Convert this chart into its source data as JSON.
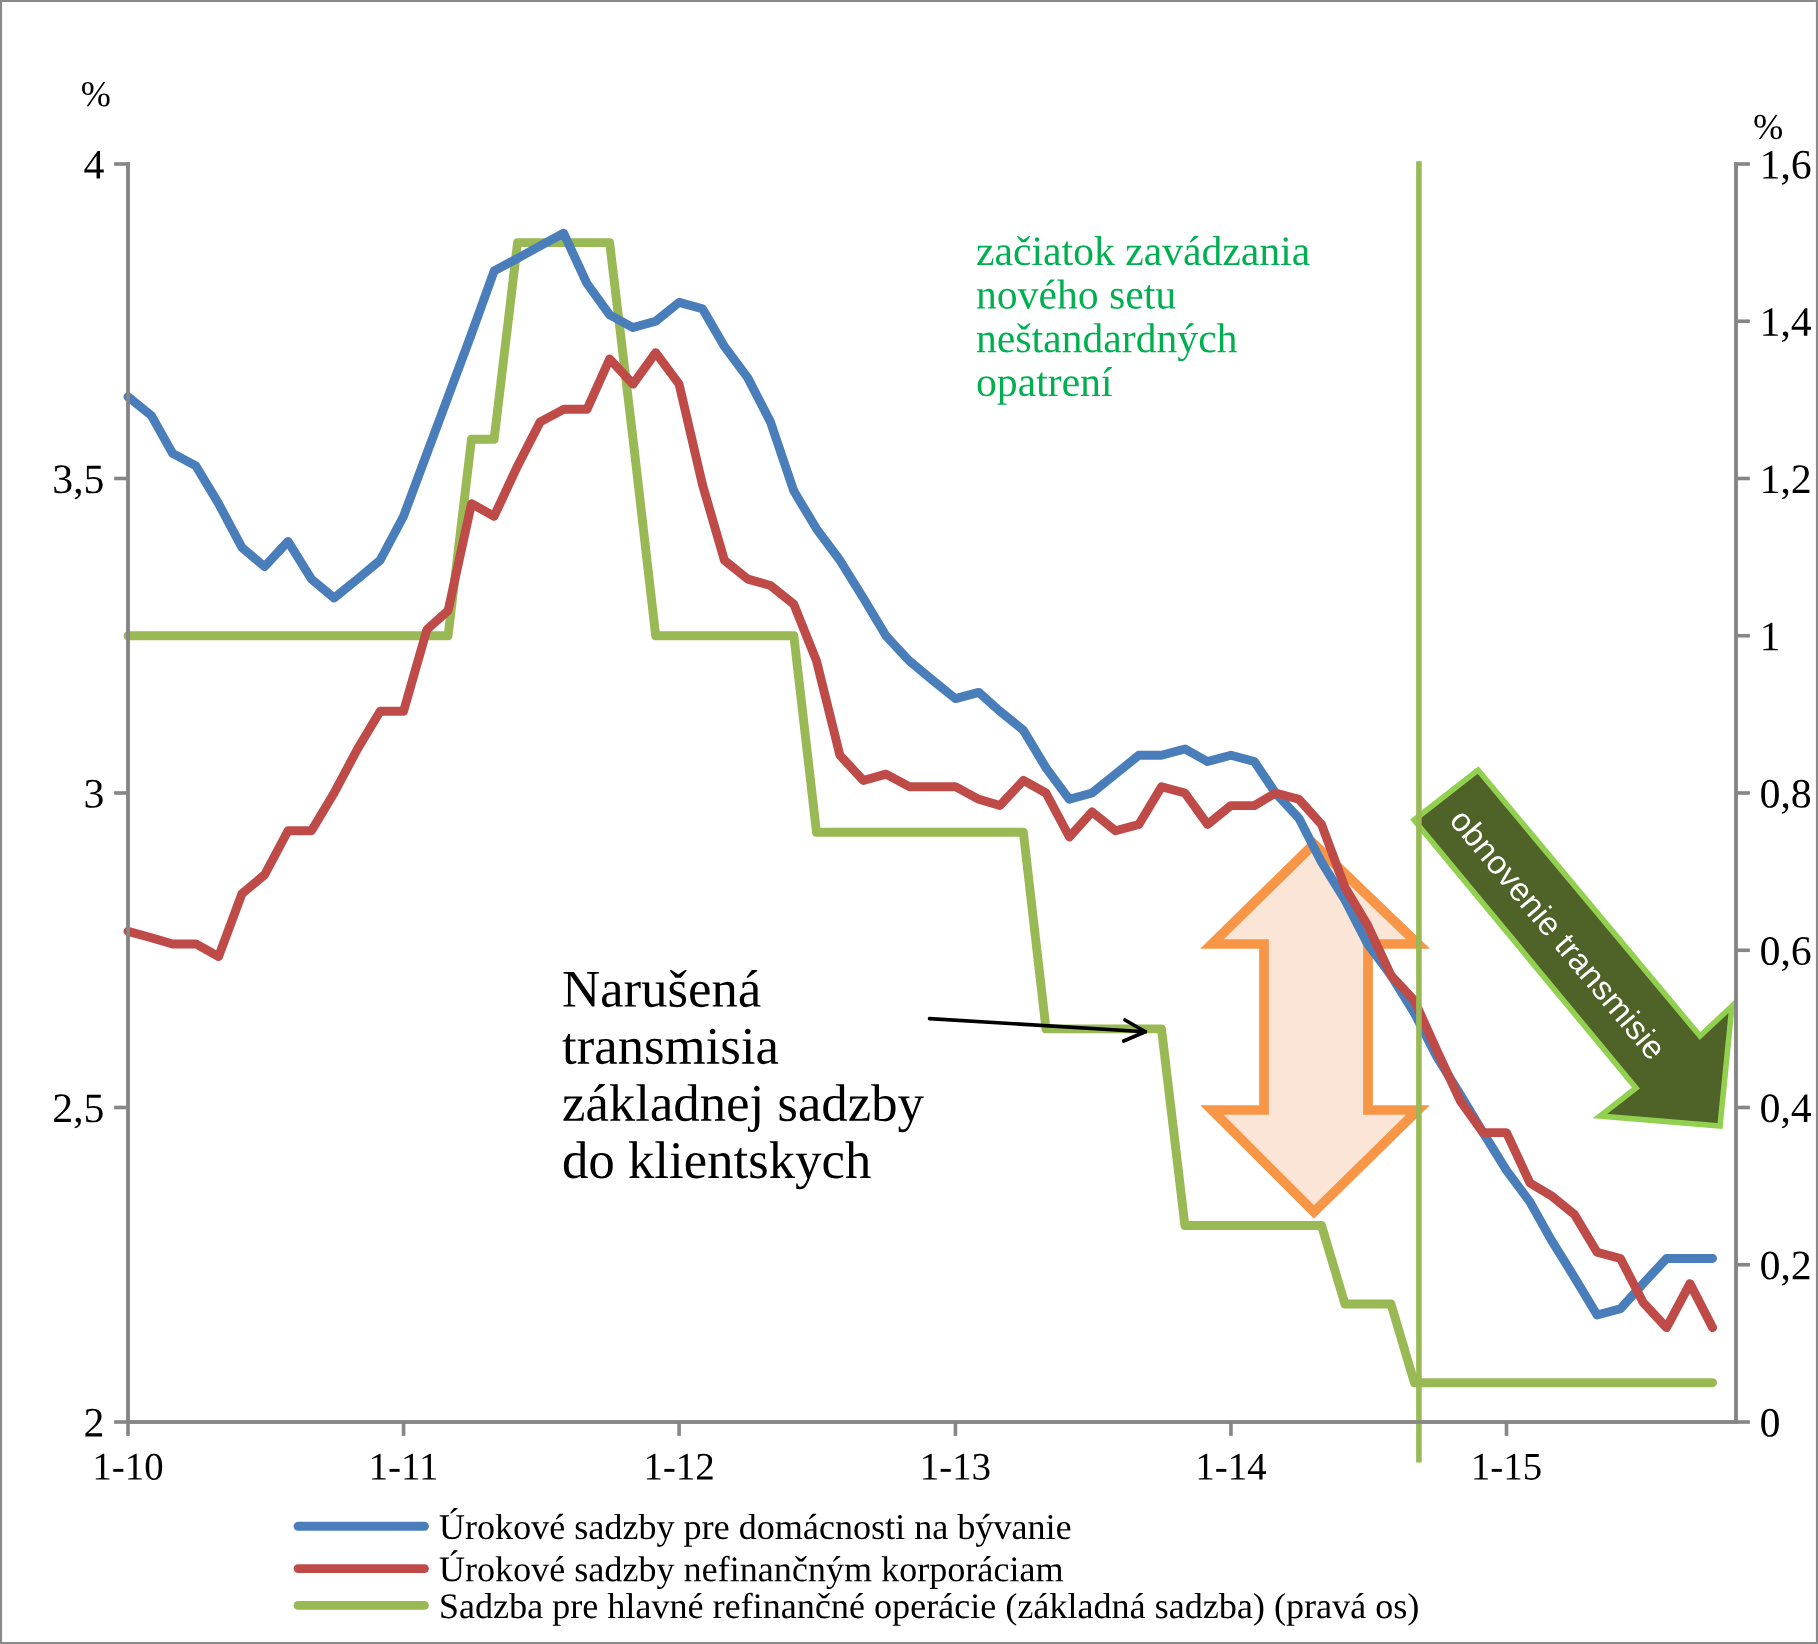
{
  "chart_data": {
    "type": "line",
    "ylabel": "%",
    "y2label": "%",
    "x": [
      "2010-01",
      "2010-02",
      "2010-03",
      "2010-04",
      "2010-05",
      "2010-06",
      "2010-07",
      "2010-08",
      "2010-09",
      "2010-10",
      "2010-11",
      "2010-12",
      "2011-01",
      "2011-02",
      "2011-03",
      "2011-04",
      "2011-05",
      "2011-06",
      "2011-07",
      "2011-08",
      "2011-09",
      "2011-10",
      "2011-11",
      "2011-12",
      "2012-01",
      "2012-02",
      "2012-03",
      "2012-04",
      "2012-05",
      "2012-06",
      "2012-07",
      "2012-08",
      "2012-09",
      "2012-10",
      "2012-11",
      "2012-12",
      "2013-01",
      "2013-02",
      "2013-03",
      "2013-04",
      "2013-05",
      "2013-06",
      "2013-07",
      "2013-08",
      "2013-09",
      "2013-10",
      "2013-11",
      "2013-12",
      "2014-01",
      "2014-02",
      "2014-03",
      "2014-04",
      "2014-05",
      "2014-06",
      "2014-07",
      "2014-08",
      "2014-09",
      "2014-10",
      "2014-11",
      "2014-12",
      "2015-01",
      "2015-02",
      "2015-03",
      "2015-04",
      "2015-05",
      "2015-06",
      "2015-07",
      "2015-08",
      "2015-09",
      "2015-10"
    ],
    "xlim": [
      "2010-01",
      "2015-11"
    ],
    "xticks": [
      {
        "value": "2010-01",
        "label": "1-10"
      },
      {
        "value": "2011-01",
        "label": "1-11"
      },
      {
        "value": "2012-01",
        "label": "1-12"
      },
      {
        "value": "2013-01",
        "label": "1-13"
      },
      {
        "value": "2014-01",
        "label": "1-14"
      },
      {
        "value": "2015-01",
        "label": "1-15"
      }
    ],
    "ylim": [
      2,
      4
    ],
    "yticks": [
      2,
      {
        "value": 2.5,
        "label": "2,5"
      },
      3,
      {
        "value": 3.5,
        "label": "3,5"
      },
      4
    ],
    "y2lim": [
      0,
      1.6
    ],
    "y2ticks": [
      0,
      {
        "value": 0.2,
        "label": "0,2"
      },
      {
        "value": 0.4,
        "label": "0,4"
      },
      {
        "value": 0.6,
        "label": "0,6"
      },
      {
        "value": 0.8,
        "label": "0,8"
      },
      1,
      {
        "value": 1.2,
        "label": "1,2"
      },
      {
        "value": 1.4,
        "label": "1,4"
      },
      {
        "value": 1.6,
        "label": "1,6"
      }
    ],
    "series": [
      {
        "name": "Úrokové sadzby pre domácnosti na bývanie",
        "color": "#4a7ebb",
        "values": [
          3.63,
          3.6,
          3.54,
          3.52,
          3.46,
          3.39,
          3.36,
          3.4,
          3.34,
          3.31,
          3.34,
          3.37,
          3.44,
          3.54,
          3.63,
          3.73,
          3.83,
          3.85,
          3.87,
          3.89,
          3.81,
          3.76,
          3.74,
          3.75,
          3.78,
          3.77,
          3.71,
          3.66,
          3.59,
          3.48,
          3.42,
          3.37,
          3.31,
          3.25,
          3.21,
          3.18,
          3.15,
          3.16,
          3.13,
          3.1,
          3.04,
          2.99,
          3.0,
          3.03,
          3.06,
          3.06,
          3.07,
          3.05,
          3.06,
          3.05,
          3.0,
          2.96,
          2.89,
          2.83,
          2.76,
          2.71,
          2.65,
          2.58,
          2.52,
          2.46,
          2.4,
          2.35,
          2.29,
          2.23,
          2.17,
          2.18,
          2.22,
          2.26,
          2.26,
          2.26
        ]
      },
      {
        "name": "Úrokové sadzby nefinančným korporáciam",
        "color": "#be4b48",
        "values": [
          2.78,
          2.77,
          2.76,
          2.76,
          2.74,
          2.84,
          2.87,
          2.94,
          2.94,
          3.0,
          3.07,
          3.13,
          3.13,
          3.26,
          3.29,
          3.46,
          3.44,
          3.52,
          3.59,
          3.61,
          3.61,
          3.69,
          3.65,
          3.7,
          3.65,
          3.49,
          3.37,
          3.34,
          3.33,
          3.3,
          3.21,
          3.06,
          3.02,
          3.03,
          3.01,
          3.01,
          3.01,
          2.99,
          2.98,
          3.02,
          3.0,
          2.93,
          2.97,
          2.94,
          2.95,
          3.01,
          3.0,
          2.95,
          2.98,
          2.98,
          3.0,
          2.99,
          2.95,
          2.85,
          2.79,
          2.71,
          2.67,
          2.59,
          2.51,
          2.46,
          2.46,
          2.38,
          2.36,
          2.33,
          2.27,
          2.26,
          2.19,
          2.15,
          2.22,
          2.15
        ]
      },
      {
        "name": "Sadzba pre hlavné refinančné operácie (základná sadzba) (pravá os)",
        "color": "#98b954",
        "axis": "y2",
        "values": [
          1,
          1,
          1,
          1,
          1,
          1,
          1,
          1,
          1,
          1,
          1,
          1,
          1,
          1,
          1,
          1.25,
          1.25,
          1.5,
          1.5,
          1.5,
          1.5,
          1.5,
          1.25,
          1,
          1,
          1,
          1,
          1,
          1,
          1,
          0.75,
          0.75,
          0.75,
          0.75,
          0.75,
          0.75,
          0.75,
          0.75,
          0.75,
          0.75,
          0.5,
          0.5,
          0.5,
          0.5,
          0.5,
          0.5,
          0.25,
          0.25,
          0.25,
          0.25,
          0.25,
          0.25,
          0.25,
          0.15,
          0.15,
          0.15,
          0.05,
          0.05,
          0.05,
          0.05,
          0.05,
          0.05,
          0.05,
          0.05,
          0.05,
          0.05,
          0.05,
          0.05,
          0.05,
          0.05
        ]
      }
    ],
    "ref_lines": [
      {
        "axis": "x",
        "value": "2014-09-07",
        "color": "#98b954"
      }
    ],
    "annotations": [
      "začiatok zavádzania\nnového setu\nneštandardných\nopatrení",
      {
        "text": "Narušená\ntransmisia\nzákladnej sadzby\ndo klientskych",
        "x": "2013-09-15",
        "y": 2.62
      },
      "obnovenie transmisie"
    ],
    "grid": false,
    "legend": "bottom",
    "marker": "none",
    "line_style": "solid"
  }
}
